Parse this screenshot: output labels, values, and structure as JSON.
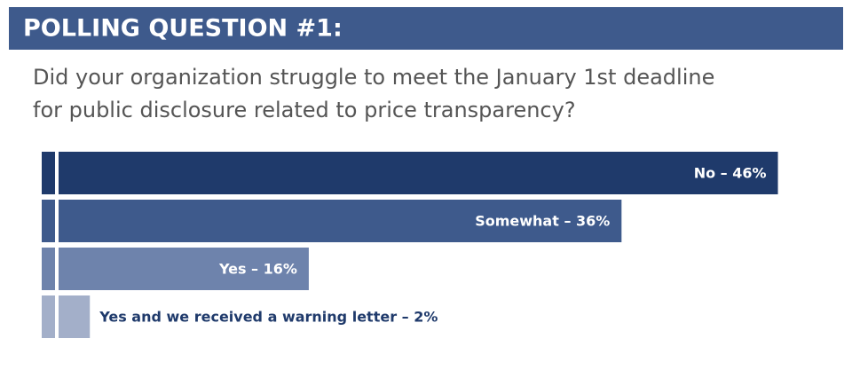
{
  "chart_data": {
    "type": "hbar",
    "title": "POLLING QUESTION #1:",
    "subtitle": [
      "Did your organization struggle to meet the January 1st deadline",
      "for public disclosure related to price transparency?"
    ],
    "values": [
      46,
      36,
      16,
      2
    ],
    "value_labels": [
      "No – 46%",
      "Somewhat – 36%",
      "Yes – 16%",
      "Yes and we received a warning letter – 2%"
    ],
    "colors": [
      "#1f3a6b",
      "#3e5a8c",
      "#6e83ac",
      "#a3afc9"
    ],
    "xlim": [
      0,
      50
    ]
  }
}
